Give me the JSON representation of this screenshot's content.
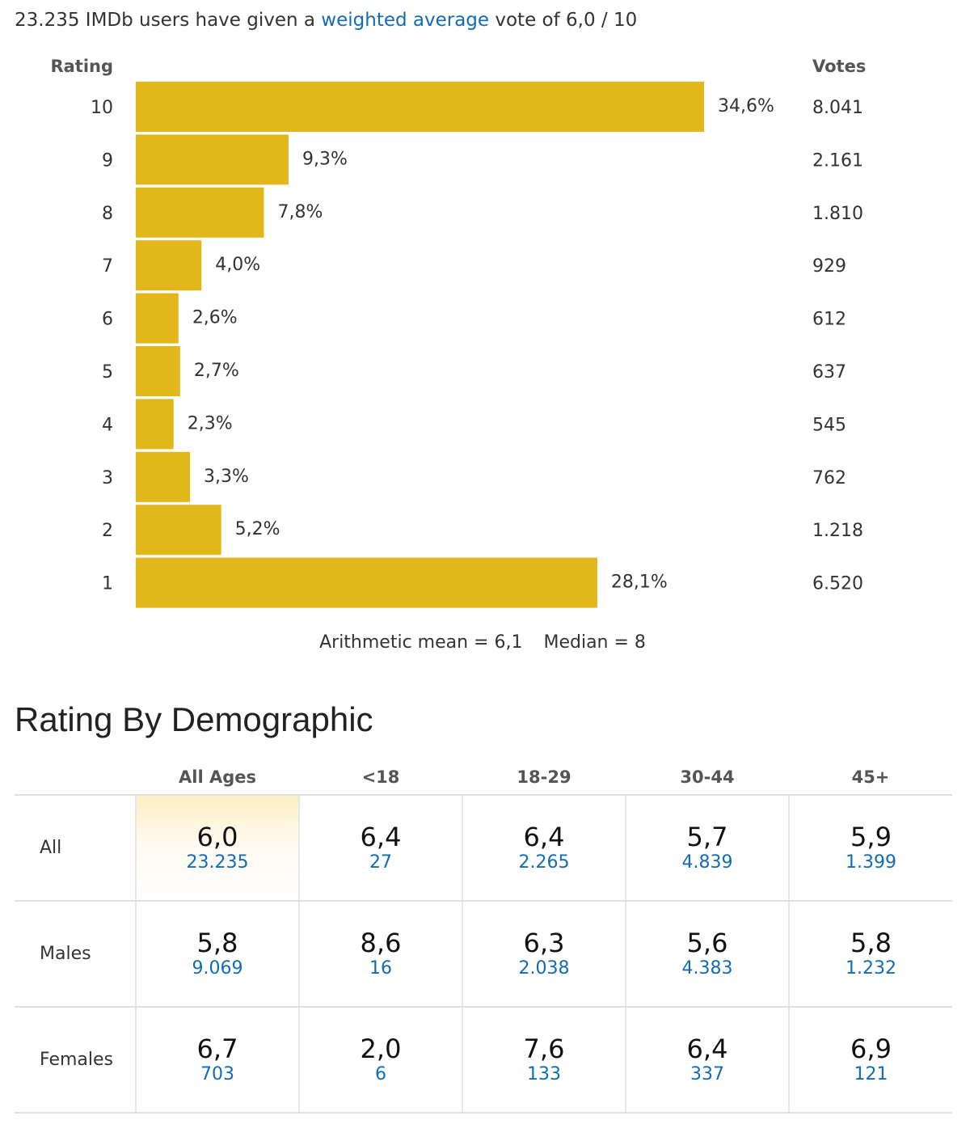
{
  "summary": {
    "prefix": "23.235 IMDb users have given a",
    "link": "weighted average",
    "suffix": "vote of 6,0 / 10"
  },
  "chart_data": {
    "type": "bar",
    "orientation": "horizontal",
    "xlabel": "Rating",
    "ylabel": "Votes",
    "categories": [
      "10",
      "9",
      "8",
      "7",
      "6",
      "5",
      "4",
      "3",
      "2",
      "1"
    ],
    "values": [
      34.6,
      9.3,
      7.8,
      4.0,
      2.6,
      2.7,
      2.3,
      3.3,
      5.2,
      28.1
    ],
    "value_labels": [
      "34,6%",
      "9,3%",
      "7,8%",
      "4,0%",
      "2,6%",
      "2,7%",
      "2,3%",
      "3,3%",
      "5,2%",
      "28,1%"
    ],
    "votes": [
      "8.041",
      "2.161",
      "1.810",
      "929",
      "612",
      "637",
      "545",
      "762",
      "1.218",
      "6.520"
    ],
    "bar_color": "#e2b71c"
  },
  "stats": {
    "mean": "Arithmetic mean = 6,1",
    "median": "Median = 8"
  },
  "demographic": {
    "title": "Rating By Demographic",
    "columns": [
      "All Ages",
      "<18",
      "18-29",
      "30-44",
      "45+"
    ],
    "rows": [
      {
        "label": "All",
        "cells": [
          {
            "rating": "6,0",
            "votes": "23.235"
          },
          {
            "rating": "6,4",
            "votes": "27"
          },
          {
            "rating": "6,4",
            "votes": "2.265"
          },
          {
            "rating": "5,7",
            "votes": "4.839"
          },
          {
            "rating": "5,9",
            "votes": "1.399"
          }
        ]
      },
      {
        "label": "Males",
        "cells": [
          {
            "rating": "5,8",
            "votes": "9.069"
          },
          {
            "rating": "8,6",
            "votes": "16"
          },
          {
            "rating": "6,3",
            "votes": "2.038"
          },
          {
            "rating": "5,6",
            "votes": "4.383"
          },
          {
            "rating": "5,8",
            "votes": "1.232"
          }
        ]
      },
      {
        "label": "Females",
        "cells": [
          {
            "rating": "6,7",
            "votes": "703"
          },
          {
            "rating": "2,0",
            "votes": "6"
          },
          {
            "rating": "7,6",
            "votes": "133"
          },
          {
            "rating": "6,4",
            "votes": "337"
          },
          {
            "rating": "6,9",
            "votes": "121"
          }
        ]
      }
    ]
  }
}
